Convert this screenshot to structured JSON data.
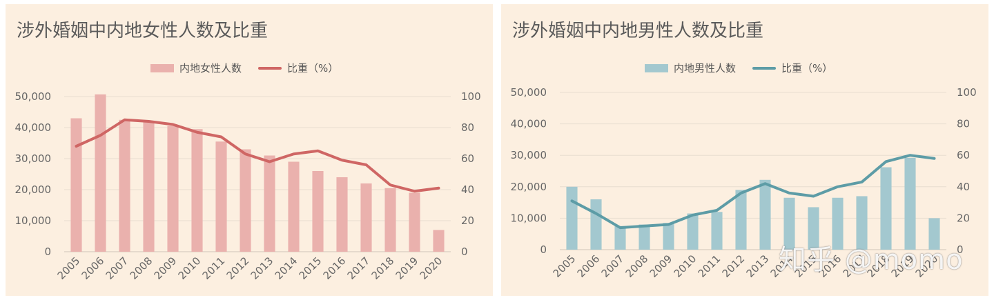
{
  "colors": {
    "female_bar": "#eab1ad",
    "female_line": "#cf6664",
    "male_bar": "#a3c8cf",
    "male_line": "#5d9ca6",
    "grid": "#e8ddd0",
    "tick_text": "#666666",
    "panel_bg": "#fcefe0"
  },
  "watermark": "知乎 @momo",
  "chart_data": [
    {
      "type": "bar+line",
      "title": "涉外婚姻中内地女性人数及比重",
      "legend": [
        "内地女性人数",
        "比重（%）"
      ],
      "categories": [
        "2005",
        "2006",
        "2007",
        "2008",
        "2009",
        "2010",
        "2011",
        "2012",
        "2013",
        "2014",
        "2015",
        "2016",
        "2017",
        "2018",
        "2019",
        "2020"
      ],
      "series": [
        {
          "name": "内地女性人数",
          "axis": "left",
          "kind": "bar",
          "values": [
            43000,
            50700,
            42500,
            42000,
            40500,
            39500,
            35500,
            33000,
            31000,
            29000,
            26000,
            24000,
            22000,
            20500,
            19000,
            7000
          ]
        },
        {
          "name": "比重（%）",
          "axis": "right",
          "kind": "line",
          "values": [
            68,
            75,
            85,
            84,
            82,
            77,
            74,
            63,
            58,
            63,
            65,
            59,
            56,
            43,
            39,
            41
          ]
        }
      ],
      "left_axis": {
        "min": 0,
        "max": 50000,
        "ticks": [
          "0",
          "10,000",
          "20,000",
          "30,000",
          "40,000",
          "50,000"
        ]
      },
      "right_axis": {
        "min": 0,
        "max": 100,
        "ticks": [
          "0",
          "20",
          "40",
          "60",
          "80",
          "100"
        ]
      }
    },
    {
      "type": "bar+line",
      "title": "涉外婚姻中内地男性人数及比重",
      "legend": [
        "内地男性人数",
        "比重（%）"
      ],
      "categories": [
        "2005",
        "2006",
        "2007",
        "2008",
        "2009",
        "2010",
        "2011",
        "2012",
        "2013",
        "2014",
        "2015",
        "2016",
        "2017",
        "2018",
        "2019",
        "2020"
      ],
      "series": [
        {
          "name": "内地男性人数",
          "axis": "left",
          "kind": "bar",
          "values": [
            20000,
            16000,
            7500,
            8000,
            8500,
            11500,
            12000,
            19000,
            22200,
            16500,
            13500,
            16500,
            17000,
            26200,
            29200,
            10000
          ]
        },
        {
          "name": "比重（%）",
          "axis": "right",
          "kind": "line",
          "values": [
            31,
            23,
            14,
            15,
            16,
            22,
            25,
            36,
            42,
            36,
            34,
            40,
            43,
            56,
            60,
            58
          ]
        }
      ],
      "left_axis": {
        "min": 0,
        "max": 50000,
        "ticks": [
          "0",
          "10,000",
          "20,000",
          "30,000",
          "40,000",
          "50,000"
        ]
      },
      "right_axis": {
        "min": 0,
        "max": 100,
        "ticks": [
          "0",
          "20",
          "40",
          "60",
          "80",
          "100"
        ]
      }
    }
  ]
}
